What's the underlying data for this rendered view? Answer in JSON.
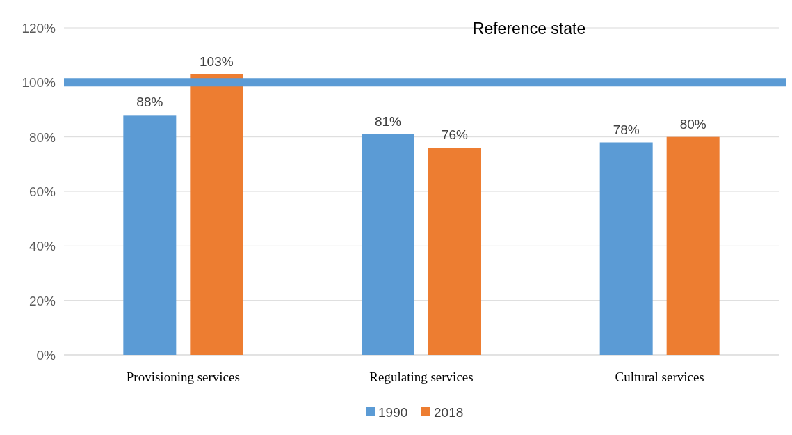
{
  "chart_data": {
    "type": "bar",
    "categories": [
      "Provisioning services",
      "Regulating services",
      "Cultural services"
    ],
    "series": [
      {
        "name": "1990",
        "color": "#5b9bd5",
        "values": [
          88,
          81,
          78
        ],
        "value_labels": [
          "88%",
          "81%",
          "78%"
        ]
      },
      {
        "name": "2018",
        "color": "#ed7d31",
        "values": [
          103,
          76,
          80
        ],
        "value_labels": [
          "103%",
          "76%",
          "80%"
        ]
      }
    ],
    "ylim": [
      0,
      120
    ],
    "yticks": [
      {
        "value": 0,
        "label": "0%"
      },
      {
        "value": 20,
        "label": "20%"
      },
      {
        "value": 40,
        "label": "40%"
      },
      {
        "value": 60,
        "label": "60%"
      },
      {
        "value": 80,
        "label": "80%"
      },
      {
        "value": 100,
        "label": "100%"
      },
      {
        "value": 120,
        "label": "120%"
      }
    ],
    "ref_lines": [
      {
        "axis": "y",
        "value": 100,
        "label": "Reference state",
        "color": "#5b9bd5"
      }
    ],
    "grid": "y",
    "legend": "bottom"
  }
}
